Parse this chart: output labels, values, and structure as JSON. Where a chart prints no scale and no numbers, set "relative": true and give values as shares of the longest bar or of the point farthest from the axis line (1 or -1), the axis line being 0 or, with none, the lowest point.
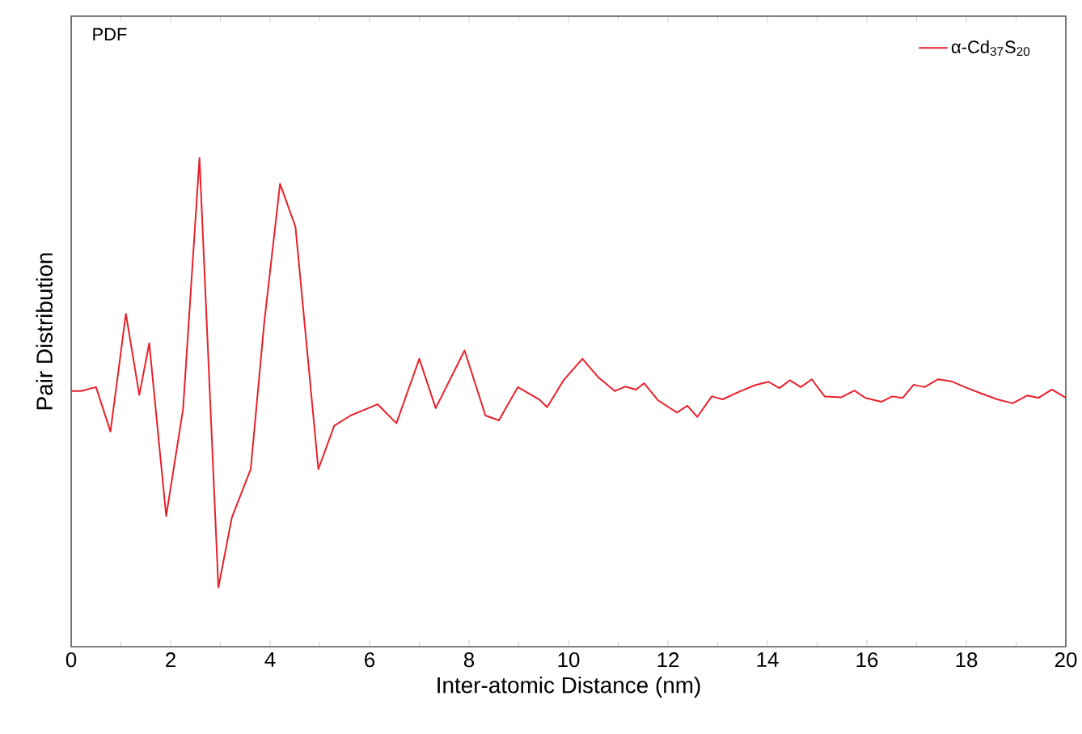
{
  "chart_data": {
    "type": "line",
    "title": "PDF",
    "xlabel": "Inter-atomic Distance (nm)",
    "ylabel": "Pair Distribution",
    "relative": true,
    "xlim": [
      0,
      20
    ],
    "xticks": [
      0,
      2,
      4,
      6,
      8,
      10,
      12,
      14,
      16,
      18,
      20
    ],
    "legend": "top right",
    "grid": false,
    "series": [
      {
        "name": "α-Cd$_{37}$S$_{20}$",
        "color": "#e8202a",
        "x": [
          0,
          0.2,
          0.5,
          0.79,
          1.1,
          1.37,
          1.57,
          1.91,
          2.25,
          2.58,
          2.96,
          3.23,
          3.61,
          3.88,
          4.2,
          4.51,
          4.97,
          5.29,
          5.62,
          6.16,
          6.54,
          7.0,
          7.33,
          7.91,
          8.33,
          8.6,
          8.98,
          9.41,
          9.57,
          9.9,
          10.28,
          10.6,
          10.93,
          11.14,
          11.36,
          11.52,
          11.8,
          12.18,
          12.39,
          12.59,
          12.88,
          13.1,
          13.42,
          13.75,
          14.02,
          14.24,
          14.45,
          14.67,
          14.89,
          15.15,
          15.48,
          15.75,
          15.97,
          16.29,
          16.51,
          16.72,
          16.94,
          17.16,
          17.43,
          17.7,
          17.97,
          18.3,
          18.62,
          18.93,
          19.23,
          19.45,
          19.72,
          19.99
        ],
        "values": [
          0.523,
          0.523,
          0.531,
          0.44,
          0.681,
          0.515,
          0.621,
          0.267,
          0.486,
          1.0,
          0.121,
          0.264,
          0.363,
          0.661,
          0.947,
          0.859,
          0.363,
          0.452,
          0.473,
          0.496,
          0.457,
          0.589,
          0.488,
          0.606,
          0.473,
          0.463,
          0.531,
          0.506,
          0.49,
          0.545,
          0.589,
          0.551,
          0.523,
          0.532,
          0.526,
          0.539,
          0.504,
          0.479,
          0.493,
          0.47,
          0.512,
          0.506,
          0.521,
          0.535,
          0.542,
          0.529,
          0.545,
          0.531,
          0.547,
          0.512,
          0.51,
          0.524,
          0.509,
          0.501,
          0.512,
          0.509,
          0.536,
          0.531,
          0.547,
          0.543,
          0.531,
          0.518,
          0.506,
          0.498,
          0.514,
          0.509,
          0.526,
          0.51
        ]
      }
    ]
  }
}
